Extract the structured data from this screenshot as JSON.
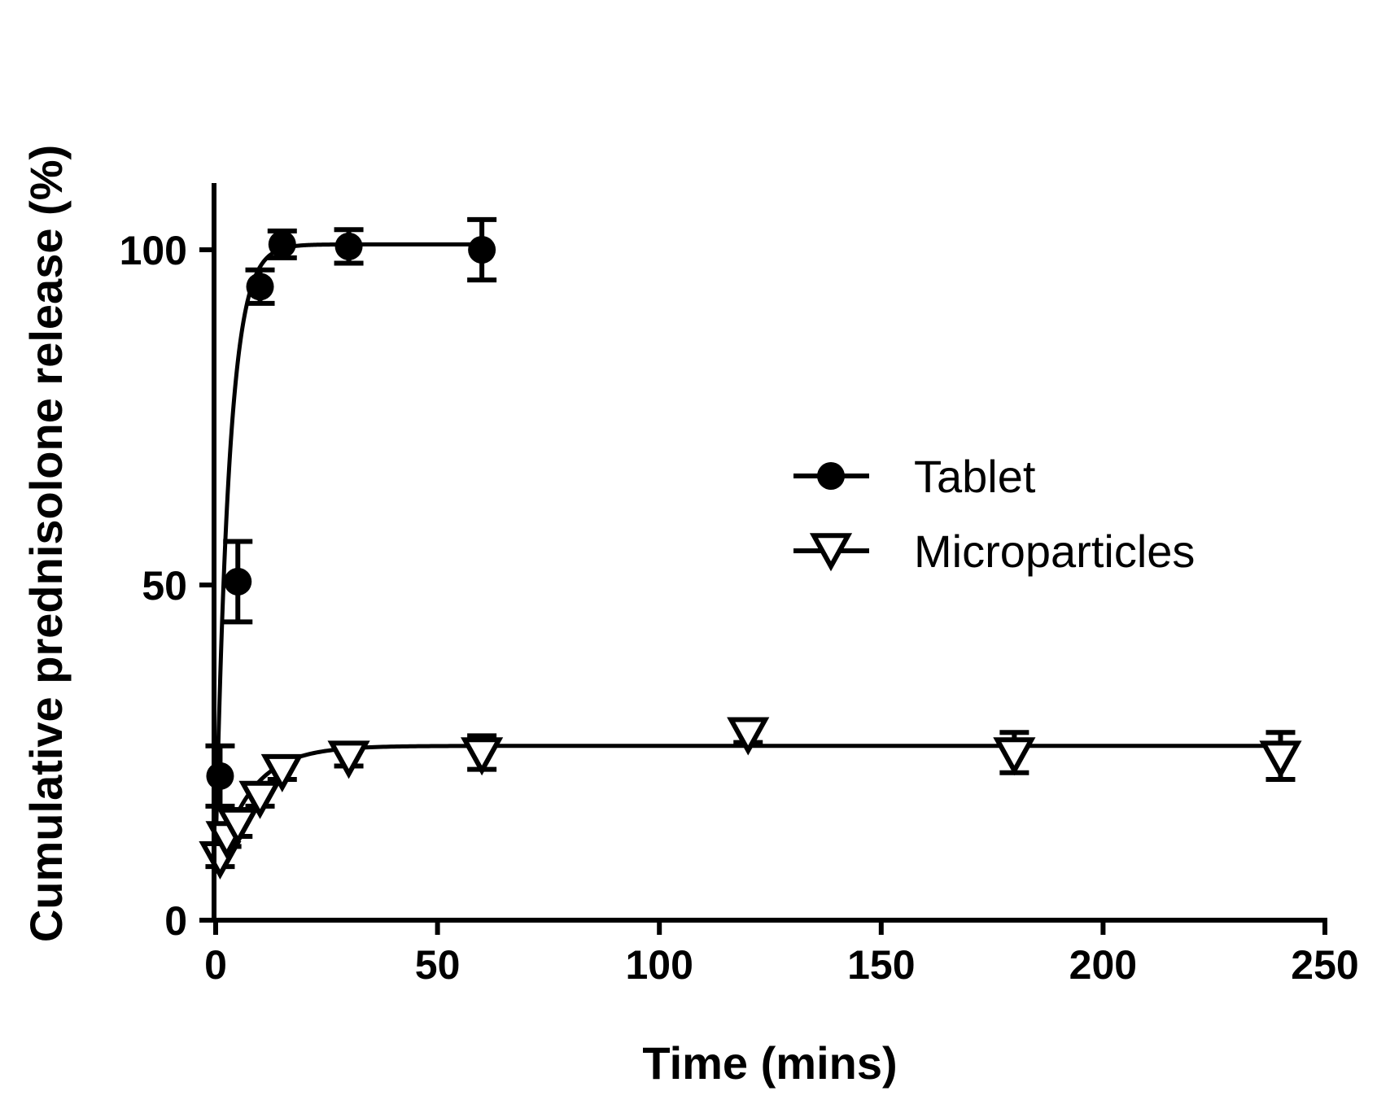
{
  "chart_data": {
    "type": "scatter",
    "title": "",
    "xlabel": "Time (mins)",
    "ylabel": "Cumulative prednisolone release (%)",
    "xlim": [
      0,
      250
    ],
    "ylim": [
      0,
      110
    ],
    "xticks": [
      0,
      50,
      100,
      150,
      200,
      250
    ],
    "yticks": [
      0,
      50,
      100
    ],
    "grid": false,
    "legend_position": "right-middle",
    "series": [
      {
        "name": "Tablet",
        "marker": "filled-circle",
        "color": "#000000",
        "x": [
          1,
          5,
          10,
          15,
          30,
          60
        ],
        "y": [
          21.5,
          50.5,
          94.5,
          100.8,
          100.5,
          100
        ],
        "error": [
          4.5,
          6,
          2.5,
          2,
          2.5,
          4.5
        ],
        "fit": "one-phase-association",
        "fit_params": {
          "y0": 10,
          "plateau": 100.8,
          "k": 0.33,
          "x0": 0
        }
      },
      {
        "name": "Microparticles",
        "marker": "open-triangle-down",
        "color": "#000000",
        "x": [
          1,
          2.5,
          5,
          10,
          15,
          30,
          60,
          120,
          180,
          240
        ],
        "y": [
          9.5,
          12.5,
          14.5,
          18.5,
          22.5,
          24.5,
          25,
          28,
          25,
          24.5
        ],
        "error": [
          1.5,
          1.5,
          2,
          1.5,
          1.5,
          1.5,
          2.5,
          1.5,
          3,
          3.5
        ],
        "fit": "one-phase-association",
        "fit_params": {
          "y0": 7,
          "plateau": 26,
          "k": 0.13,
          "x0": 0
        }
      }
    ]
  }
}
